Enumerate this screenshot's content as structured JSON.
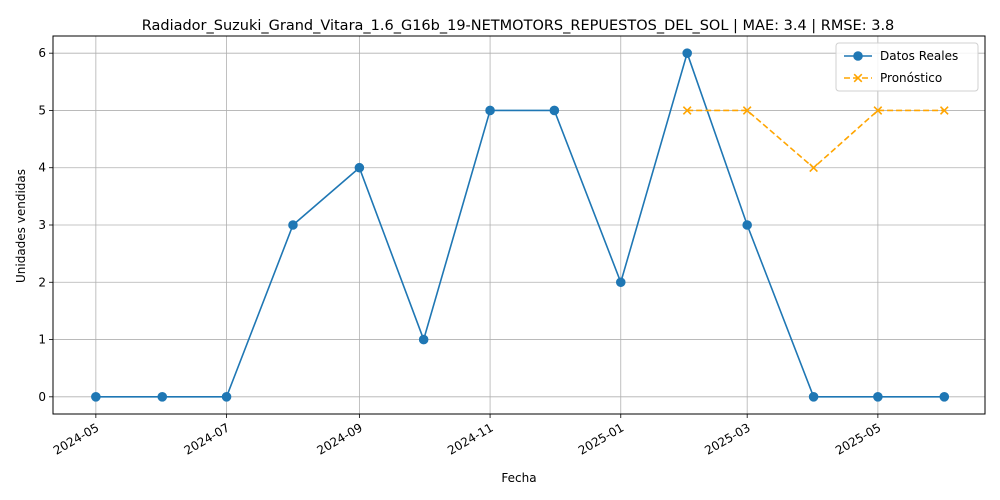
{
  "chart_data": {
    "type": "line",
    "title": "Radiador_Suzuki_Grand_Vitara_1.6_G16b_19-NETMOTORS_REPUESTOS_DEL_SOL | MAE: 3.4 | RMSE: 3.8",
    "xlabel": "Fecha",
    "ylabel": "Unidades vendidas",
    "ylim": [
      -0.3,
      6.3
    ],
    "xlim": [
      "2024-04-11",
      "2025-06-20"
    ],
    "x_ticks": [
      "2024-05",
      "2024-07",
      "2024-09",
      "2024-11",
      "2025-01",
      "2025-03",
      "2025-05"
    ],
    "y_ticks": [
      0,
      1,
      2,
      3,
      4,
      5,
      6
    ],
    "grid": true,
    "legend_position": "top-right",
    "series": [
      {
        "name": "Datos Reales",
        "color": "#1f77b4",
        "style": "solid",
        "marker": "circle",
        "x": [
          "2024-05-01",
          "2024-06-01",
          "2024-07-01",
          "2024-08-01",
          "2024-09-01",
          "2024-10-01",
          "2024-11-01",
          "2024-12-01",
          "2025-01-01",
          "2025-02-01",
          "2025-03-01",
          "2025-04-01",
          "2025-05-01",
          "2025-06-01"
        ],
        "values": [
          0,
          0,
          0,
          3,
          4,
          1,
          5,
          5,
          2,
          6,
          3,
          0,
          0,
          0
        ]
      },
      {
        "name": "Pronóstico",
        "color": "#ffa500",
        "style": "dashed",
        "marker": "x",
        "x": [
          "2025-02-01",
          "2025-03-01",
          "2025-04-01",
          "2025-05-01",
          "2025-06-01"
        ],
        "values": [
          5.0,
          5.0,
          4.0,
          5.0,
          5.0
        ]
      }
    ]
  }
}
